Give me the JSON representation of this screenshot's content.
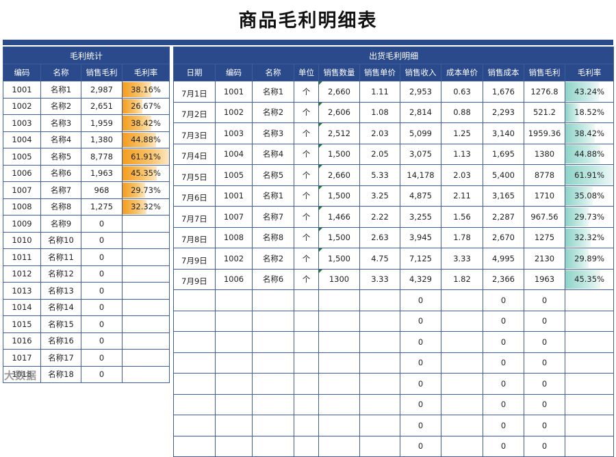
{
  "title": "商品毛利明细表",
  "left": {
    "group_title": "毛利统计",
    "headers": [
      "编码",
      "名称",
      "销售毛利",
      "毛利率"
    ],
    "rows": [
      {
        "code": "1001",
        "name": "名称1",
        "profit": "2,987",
        "rate": "38.16%",
        "rate_value": 0.3816
      },
      {
        "code": "1002",
        "name": "名称2",
        "profit": "2,651",
        "rate": "26.67%",
        "rate_value": 0.2667
      },
      {
        "code": "1003",
        "name": "名称3",
        "profit": "1,959",
        "rate": "38.42%",
        "rate_value": 0.3842
      },
      {
        "code": "1004",
        "name": "名称4",
        "profit": "1,380",
        "rate": "44.88%",
        "rate_value": 0.4488
      },
      {
        "code": "1005",
        "name": "名称5",
        "profit": "8,778",
        "rate": "61.91%",
        "rate_value": 0.6191
      },
      {
        "code": "1006",
        "name": "名称6",
        "profit": "1,963",
        "rate": "45.35%",
        "rate_value": 0.4535
      },
      {
        "code": "1007",
        "name": "名称7",
        "profit": "968",
        "rate": "29.73%",
        "rate_value": 0.2973
      },
      {
        "code": "1008",
        "name": "名称8",
        "profit": "1,275",
        "rate": "32.32%",
        "rate_value": 0.3232
      },
      {
        "code": "1009",
        "name": "名称9",
        "profit": "0",
        "rate": "",
        "rate_value": 0
      },
      {
        "code": "1010",
        "name": "名称10",
        "profit": "0",
        "rate": "",
        "rate_value": 0
      },
      {
        "code": "1011",
        "name": "名称11",
        "profit": "0",
        "rate": "",
        "rate_value": 0
      },
      {
        "code": "1012",
        "name": "名称12",
        "profit": "0",
        "rate": "",
        "rate_value": 0
      },
      {
        "code": "1013",
        "name": "名称13",
        "profit": "0",
        "rate": "",
        "rate_value": 0
      },
      {
        "code": "1014",
        "name": "名称14",
        "profit": "0",
        "rate": "",
        "rate_value": 0
      },
      {
        "code": "1015",
        "name": "名称15",
        "profit": "0",
        "rate": "",
        "rate_value": 0
      },
      {
        "code": "1016",
        "name": "名称16",
        "profit": "0",
        "rate": "",
        "rate_value": 0
      },
      {
        "code": "1017",
        "name": "名称17",
        "profit": "0",
        "rate": "",
        "rate_value": 0
      },
      {
        "code": "1018",
        "name": "名称18",
        "profit": "0",
        "rate": "",
        "rate_value": 0
      }
    ]
  },
  "right": {
    "group_title": "出货毛利明细",
    "headers": [
      "日期",
      "编码",
      "名称",
      "单位",
      "销售数量",
      "销售单价",
      "销售收入",
      "成本单价",
      "销售成本",
      "销售毛利",
      "毛利率"
    ],
    "rows": [
      {
        "date": "7月1日",
        "code": "1001",
        "name": "名称1",
        "unit": "个",
        "qty": "2,660",
        "price": "1.11",
        "revenue": "2,953",
        "unit_cost": "0.63",
        "cost": "1,676",
        "profit": "1276.8",
        "rate": "43.24%",
        "rate_value": 0.4324
      },
      {
        "date": "7月2日",
        "code": "1002",
        "name": "名称2",
        "unit": "个",
        "qty": "2,606",
        "price": "1.08",
        "revenue": "2,814",
        "unit_cost": "0.88",
        "cost": "2,293",
        "profit": "521.2",
        "rate": "18.52%",
        "rate_value": 0.1852
      },
      {
        "date": "7月3日",
        "code": "1003",
        "name": "名称3",
        "unit": "个",
        "qty": "2,512",
        "price": "2.03",
        "revenue": "5,099",
        "unit_cost": "1.25",
        "cost": "3,140",
        "profit": "1959.36",
        "rate": "38.42%",
        "rate_value": 0.3842
      },
      {
        "date": "7月4日",
        "code": "1004",
        "name": "名称4",
        "unit": "个",
        "qty": "1,500",
        "price": "2.05",
        "revenue": "3,075",
        "unit_cost": "1.13",
        "cost": "1,695",
        "profit": "1380",
        "rate": "44.88%",
        "rate_value": 0.4488
      },
      {
        "date": "7月5日",
        "code": "1005",
        "name": "名称5",
        "unit": "个",
        "qty": "2,660",
        "price": "5.33",
        "revenue": "14,178",
        "unit_cost": "2.03",
        "cost": "5,400",
        "profit": "8778",
        "rate": "61.91%",
        "rate_value": 0.6191
      },
      {
        "date": "7月6日",
        "code": "1001",
        "name": "名称1",
        "unit": "个",
        "qty": "1,500",
        "price": "3.25",
        "revenue": "4,875",
        "unit_cost": "2.11",
        "cost": "3,165",
        "profit": "1710",
        "rate": "35.08%",
        "rate_value": 0.3508
      },
      {
        "date": "7月7日",
        "code": "1007",
        "name": "名称7",
        "unit": "个",
        "qty": "1,466",
        "price": "2.22",
        "revenue": "3,255",
        "unit_cost": "1.56",
        "cost": "2,287",
        "profit": "967.56",
        "rate": "29.73%",
        "rate_value": 0.2973
      },
      {
        "date": "7月8日",
        "code": "1008",
        "name": "名称8",
        "unit": "个",
        "qty": "1,500",
        "price": "2.63",
        "revenue": "3,945",
        "unit_cost": "1.78",
        "cost": "2,670",
        "profit": "1275",
        "rate": "32.32%",
        "rate_value": 0.3232
      },
      {
        "date": "7月9日",
        "code": "1002",
        "name": "名称2",
        "unit": "个",
        "qty": "1,500",
        "price": "4.75",
        "revenue": "7,125",
        "unit_cost": "3.33",
        "cost": "4,995",
        "profit": "2130",
        "rate": "29.89%",
        "rate_value": 0.2989
      },
      {
        "date": "7月9日",
        "code": "1006",
        "name": "名称6",
        "unit": "个",
        "qty": "1300",
        "price": "3.33",
        "revenue": "4,329",
        "unit_cost": "1.82",
        "cost": "2,366",
        "profit": "1963",
        "rate": "45.35%",
        "rate_value": 0.4535
      },
      {
        "date": "",
        "code": "",
        "name": "",
        "unit": "",
        "qty": "",
        "price": "",
        "revenue": "0",
        "unit_cost": "",
        "cost": "0",
        "profit": "0",
        "rate": "",
        "rate_value": 0
      },
      {
        "date": "",
        "code": "",
        "name": "",
        "unit": "",
        "qty": "",
        "price": "",
        "revenue": "0",
        "unit_cost": "",
        "cost": "0",
        "profit": "0",
        "rate": "",
        "rate_value": 0
      },
      {
        "date": "",
        "code": "",
        "name": "",
        "unit": "",
        "qty": "",
        "price": "",
        "revenue": "0",
        "unit_cost": "",
        "cost": "0",
        "profit": "0",
        "rate": "",
        "rate_value": 0
      },
      {
        "date": "",
        "code": "",
        "name": "",
        "unit": "",
        "qty": "",
        "price": "",
        "revenue": "0",
        "unit_cost": "",
        "cost": "0",
        "profit": "0",
        "rate": "",
        "rate_value": 0
      },
      {
        "date": "",
        "code": "",
        "name": "",
        "unit": "",
        "qty": "",
        "price": "",
        "revenue": "0",
        "unit_cost": "",
        "cost": "0",
        "profit": "0",
        "rate": "",
        "rate_value": 0
      },
      {
        "date": "",
        "code": "",
        "name": "",
        "unit": "",
        "qty": "",
        "price": "",
        "revenue": "0",
        "unit_cost": "",
        "cost": "0",
        "profit": "0",
        "rate": "",
        "rate_value": 0
      },
      {
        "date": "",
        "code": "",
        "name": "",
        "unit": "",
        "qty": "",
        "price": "",
        "revenue": "0",
        "unit_cost": "",
        "cost": "0",
        "profit": "0",
        "rate": "",
        "rate_value": 0
      },
      {
        "date": "",
        "code": "",
        "name": "",
        "unit": "",
        "qty": "",
        "price": "",
        "revenue": "0",
        "unit_cost": "",
        "cost": "0",
        "profit": "0",
        "rate": "",
        "rate_value": 0
      }
    ]
  },
  "watermark": "大数据",
  "colors": {
    "header_bg": "#2b4a8b",
    "left_bar": "#f49c1e",
    "right_bar": "#8fd3c8"
  }
}
